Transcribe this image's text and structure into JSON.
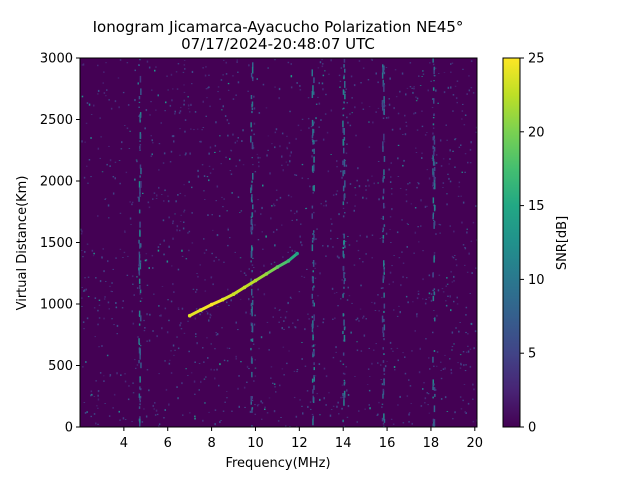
{
  "chart_data": {
    "type": "heatmap",
    "title": "Ionogram Jicamarca-Ayacucho Polarization NE45°",
    "subtitle": "07/17/2024-20:48:07 UTC",
    "xlabel": "Frequency(MHz)",
    "ylabel": "Virtual Distance(Km)",
    "xlim": [
      2.0,
      20.1
    ],
    "ylim": [
      0,
      3000
    ],
    "x_ticks": [
      4,
      6,
      8,
      10,
      12,
      14,
      16,
      18,
      20
    ],
    "x_tick_labels": [
      "4",
      "6",
      "8",
      "10",
      "12",
      "14",
      "16",
      "18",
      "20"
    ],
    "y_ticks": [
      0,
      500,
      1000,
      1500,
      2000,
      2500,
      3000
    ],
    "y_tick_labels": [
      "0",
      "500",
      "1000",
      "1500",
      "2000",
      "2500",
      "3000"
    ],
    "colorbar": {
      "label": "SNR[dB]",
      "colormap": "viridis",
      "range": [
        0,
        25
      ],
      "ticks": [
        0,
        5,
        10,
        15,
        20,
        25
      ],
      "tick_labels": [
        "0",
        "5",
        "10",
        "15",
        "20",
        "25"
      ]
    },
    "grid": false,
    "background_snr_db": 0,
    "trace": {
      "name": "",
      "points": [
        {
          "freq_mhz": 7.0,
          "distance_km": 905,
          "snr_db": 24
        },
        {
          "freq_mhz": 7.5,
          "distance_km": 950,
          "snr_db": 24
        },
        {
          "freq_mhz": 8.0,
          "distance_km": 995,
          "snr_db": 25
        },
        {
          "freq_mhz": 8.5,
          "distance_km": 1035,
          "snr_db": 24
        },
        {
          "freq_mhz": 9.0,
          "distance_km": 1080,
          "snr_db": 23
        },
        {
          "freq_mhz": 9.5,
          "distance_km": 1135,
          "snr_db": 23
        },
        {
          "freq_mhz": 10.0,
          "distance_km": 1190,
          "snr_db": 22
        },
        {
          "freq_mhz": 10.5,
          "distance_km": 1245,
          "snr_db": 21
        },
        {
          "freq_mhz": 11.0,
          "distance_km": 1300,
          "snr_db": 19
        },
        {
          "freq_mhz": 11.5,
          "distance_km": 1350,
          "snr_db": 17
        },
        {
          "freq_mhz": 11.9,
          "distance_km": 1410,
          "snr_db": 14
        }
      ]
    },
    "interference_columns_mhz": [
      4.7,
      9.8,
      12.6,
      14.0,
      15.8,
      18.1
    ]
  }
}
